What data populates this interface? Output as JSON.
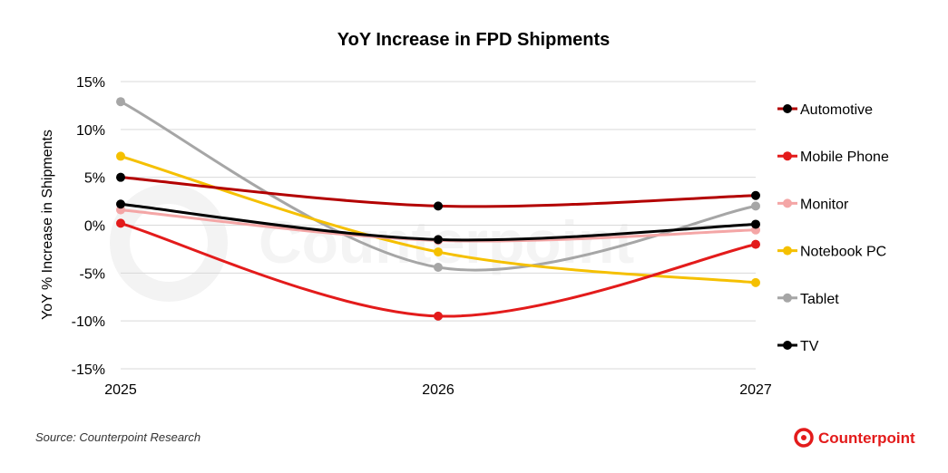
{
  "chart_data": {
    "type": "line",
    "title": "YoY Increase in FPD Shipments",
    "xlabel": "",
    "ylabel": "YoY % Increase in Shipments",
    "x": [
      "2025",
      "2026",
      "2027"
    ],
    "ylim": [
      -15,
      15
    ],
    "y_ticks": [
      15,
      10,
      5,
      0,
      -5,
      -10,
      -15
    ],
    "y_tick_labels": [
      "15%",
      "10%",
      "5%",
      "0%",
      "-5%",
      "-10%",
      "-15%"
    ],
    "grid": "horizontal",
    "legend_position": "right",
    "smooth": true,
    "series": [
      {
        "name": "Automotive",
        "values": [
          5.0,
          2.0,
          3.1
        ],
        "color": "#b30000",
        "marker_color": "#000000"
      },
      {
        "name": "Mobile Phone",
        "values": [
          0.2,
          -9.5,
          -2.0
        ],
        "color": "#e31b1b",
        "marker_color": "#e31b1b"
      },
      {
        "name": "Monitor",
        "values": [
          1.6,
          -1.6,
          -0.5
        ],
        "color": "#f4a6a6",
        "marker_color": "#f4a6a6"
      },
      {
        "name": "Notebook PC",
        "values": [
          7.2,
          -2.8,
          -6.0
        ],
        "color": "#f5c000",
        "marker_color": "#f5c000"
      },
      {
        "name": "Tablet",
        "values": [
          12.9,
          -4.4,
          2.0
        ],
        "color": "#a6a6a6",
        "marker_color": "#a6a6a6"
      },
      {
        "name": "TV",
        "values": [
          2.2,
          -1.5,
          0.1
        ],
        "color": "#000000",
        "marker_color": "#000000"
      }
    ]
  },
  "footer": {
    "source": "Source: Counterpoint Research",
    "brand": "Counterpoint",
    "brand_color": "#e31b1b"
  },
  "watermark": {
    "text": "Counterpoint",
    "color": "#f2f2f2"
  }
}
